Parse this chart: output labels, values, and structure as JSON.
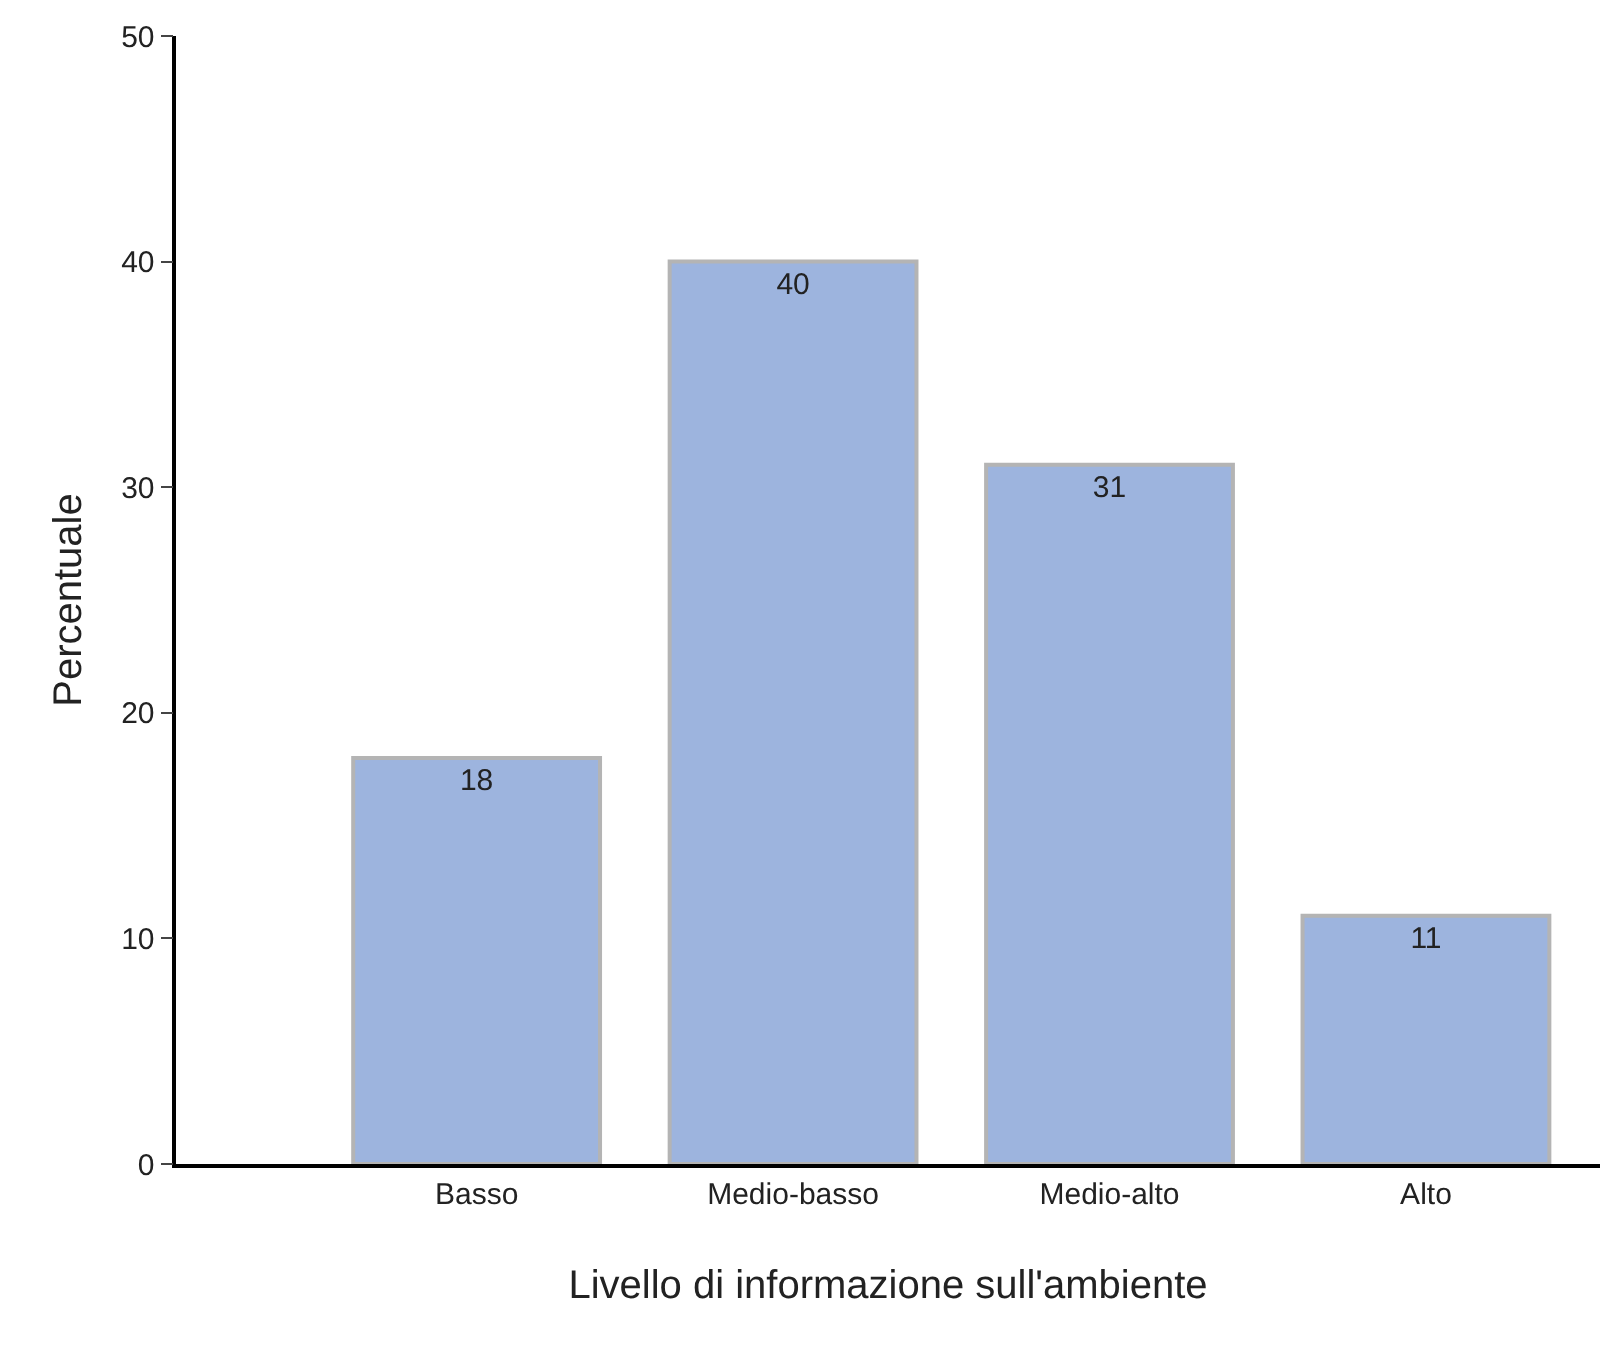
{
  "chart_data": {
    "type": "bar",
    "xlabel": "Livello di informazione sull'ambiente",
    "ylabel": "Percentuale",
    "categories": [
      "Basso",
      "Medio-basso",
      "Medio-alto",
      "Alto"
    ],
    "values": [
      18,
      40,
      31,
      11
    ],
    "color": "#9db4de",
    "ylim": [
      0,
      50
    ],
    "yticks": [
      0,
      10,
      20,
      30,
      40,
      50
    ],
    "data_labels": true
  }
}
